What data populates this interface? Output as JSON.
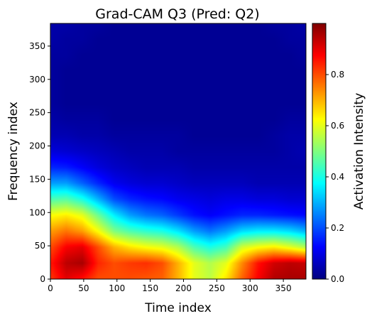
{
  "chart_data": {
    "type": "heatmap",
    "title": "Grad-CAM Q3 (Pred: Q2)",
    "xlabel": "Time index",
    "ylabel": "Frequency index",
    "xlim": [
      0,
      384
    ],
    "ylim": [
      0,
      384
    ],
    "xticks": [
      0,
      50,
      100,
      150,
      200,
      250,
      300,
      350
    ],
    "yticks": [
      0,
      50,
      100,
      150,
      200,
      250,
      300,
      350
    ],
    "colormap": "jet",
    "colorbar": {
      "label": "Activation Intensity",
      "range": [
        0,
        1
      ],
      "ticks": [
        "0.0",
        "0.2",
        "0.4",
        "0.6",
        "0.8"
      ]
    },
    "cols_x": [
      0,
      24,
      48,
      72,
      96,
      120,
      144,
      168,
      192,
      216,
      240,
      264,
      288,
      312,
      336,
      360,
      384
    ],
    "rows_y": [
      0,
      24,
      48,
      72,
      96,
      120,
      144,
      168,
      192,
      216,
      240,
      264,
      288,
      312,
      336,
      360,
      384
    ],
    "values": [
      [
        0.82,
        0.9,
        0.86,
        0.8,
        0.8,
        0.8,
        0.79,
        0.78,
        0.7,
        0.6,
        0.56,
        0.65,
        0.78,
        0.88,
        0.95,
        0.96,
        0.96
      ],
      [
        0.85,
        0.94,
        0.96,
        0.84,
        0.8,
        0.82,
        0.83,
        0.8,
        0.7,
        0.6,
        0.55,
        0.6,
        0.74,
        0.86,
        0.92,
        0.94,
        0.93
      ],
      [
        0.8,
        0.88,
        0.9,
        0.8,
        0.7,
        0.65,
        0.62,
        0.6,
        0.55,
        0.45,
        0.4,
        0.44,
        0.58,
        0.62,
        0.64,
        0.6,
        0.55
      ],
      [
        0.72,
        0.76,
        0.72,
        0.62,
        0.5,
        0.45,
        0.42,
        0.4,
        0.35,
        0.28,
        0.24,
        0.28,
        0.34,
        0.36,
        0.36,
        0.34,
        0.3
      ],
      [
        0.62,
        0.64,
        0.6,
        0.48,
        0.36,
        0.28,
        0.24,
        0.22,
        0.18,
        0.14,
        0.12,
        0.14,
        0.16,
        0.16,
        0.15,
        0.14,
        0.13
      ],
      [
        0.45,
        0.46,
        0.4,
        0.3,
        0.2,
        0.16,
        0.14,
        0.13,
        0.11,
        0.1,
        0.09,
        0.1,
        0.1,
        0.09,
        0.09,
        0.08,
        0.08
      ],
      [
        0.28,
        0.28,
        0.22,
        0.16,
        0.11,
        0.09,
        0.08,
        0.08,
        0.07,
        0.06,
        0.06,
        0.06,
        0.06,
        0.05,
        0.05,
        0.05,
        0.05
      ],
      [
        0.16,
        0.15,
        0.12,
        0.09,
        0.07,
        0.06,
        0.05,
        0.05,
        0.05,
        0.04,
        0.04,
        0.04,
        0.04,
        0.04,
        0.04,
        0.04,
        0.04
      ],
      [
        0.09,
        0.08,
        0.07,
        0.06,
        0.05,
        0.04,
        0.04,
        0.04,
        0.03,
        0.03,
        0.03,
        0.03,
        0.03,
        0.03,
        0.03,
        0.04,
        0.05
      ],
      [
        0.05,
        0.05,
        0.04,
        0.04,
        0.03,
        0.03,
        0.03,
        0.03,
        0.03,
        0.02,
        0.02,
        0.02,
        0.02,
        0.02,
        0.03,
        0.04,
        0.04
      ],
      [
        0.04,
        0.03,
        0.03,
        0.03,
        0.02,
        0.02,
        0.02,
        0.02,
        0.02,
        0.02,
        0.02,
        0.02,
        0.02,
        0.02,
        0.02,
        0.03,
        0.03
      ],
      [
        0.03,
        0.02,
        0.02,
        0.02,
        0.02,
        0.02,
        0.02,
        0.02,
        0.02,
        0.02,
        0.02,
        0.02,
        0.02,
        0.02,
        0.02,
        0.02,
        0.02
      ],
      [
        0.03,
        0.02,
        0.02,
        0.02,
        0.02,
        0.02,
        0.02,
        0.02,
        0.02,
        0.02,
        0.02,
        0.02,
        0.02,
        0.02,
        0.02,
        0.02,
        0.02
      ],
      [
        0.03,
        0.02,
        0.02,
        0.02,
        0.02,
        0.02,
        0.02,
        0.02,
        0.02,
        0.02,
        0.02,
        0.02,
        0.02,
        0.02,
        0.02,
        0.02,
        0.02
      ],
      [
        0.03,
        0.03,
        0.02,
        0.02,
        0.02,
        0.02,
        0.02,
        0.02,
        0.02,
        0.02,
        0.02,
        0.02,
        0.02,
        0.02,
        0.02,
        0.02,
        0.03
      ],
      [
        0.04,
        0.03,
        0.03,
        0.02,
        0.02,
        0.02,
        0.02,
        0.02,
        0.02,
        0.02,
        0.02,
        0.02,
        0.02,
        0.02,
        0.02,
        0.03,
        0.03
      ],
      [
        0.04,
        0.04,
        0.03,
        0.03,
        0.02,
        0.02,
        0.02,
        0.02,
        0.02,
        0.02,
        0.02,
        0.02,
        0.02,
        0.02,
        0.03,
        0.03,
        0.04
      ]
    ]
  }
}
